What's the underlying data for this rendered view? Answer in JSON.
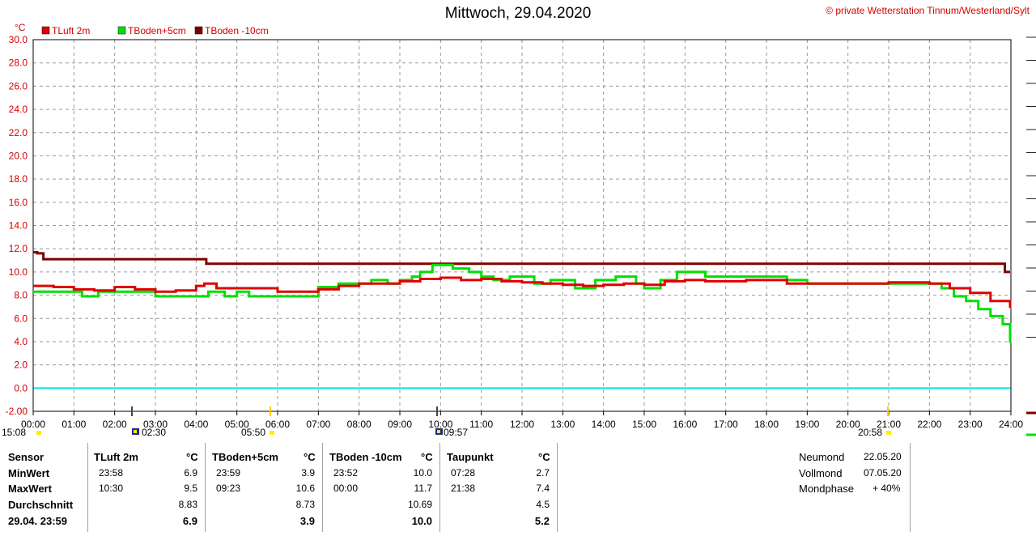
{
  "header": {
    "title": "Mittwoch, 29.04.2020",
    "credit": "© private Wetterstation Tinnum/Westerland/Sylt"
  },
  "chart_data": {
    "type": "line",
    "unit": "°C",
    "ylim": [
      -2,
      30
    ],
    "yticks": [
      "30.0",
      "28.0",
      "26.0",
      "24.0",
      "22.0",
      "20.0",
      "18.0",
      "16.0",
      "14.0",
      "12.0",
      "10.0",
      "8.0",
      "6.0",
      "4.0",
      "2.0",
      "0.0",
      "-2.00"
    ],
    "xlim": [
      0,
      24
    ],
    "xticks": [
      "00:00",
      "01:00",
      "02:00",
      "03:00",
      "04:00",
      "05:00",
      "06:00",
      "07:00",
      "08:00",
      "09:00",
      "10:00",
      "11:00",
      "12:00",
      "13:00",
      "14:00",
      "15:00",
      "16:00",
      "17:00",
      "18:00",
      "19:00",
      "20:00",
      "21:00",
      "22:00",
      "23:00",
      "24:00"
    ],
    "grid": true,
    "legend": [
      "TLuft 2m",
      "TBoden+5cm",
      "TBoden -10cm"
    ],
    "zero_line_color": "#00e5e5",
    "series": [
      {
        "name": "TLuft 2m",
        "color": "#e00000",
        "x": [
          0,
          0.5,
          1,
          1.5,
          2,
          2.5,
          3,
          3.5,
          4,
          4.2,
          4.5,
          5,
          5.5,
          6,
          6.5,
          7,
          7.5,
          8,
          8.5,
          9,
          9.5,
          10,
          10.5,
          11,
          11.5,
          12,
          12.5,
          13,
          13.5,
          14,
          14.5,
          15,
          15.5,
          16,
          16.5,
          17,
          17.5,
          18,
          18.5,
          19,
          19.5,
          20,
          20.5,
          21,
          21.5,
          22,
          22.5,
          23,
          23.5,
          23.98
        ],
        "y": [
          8.8,
          8.7,
          8.5,
          8.4,
          8.7,
          8.5,
          8.3,
          8.4,
          8.8,
          9.0,
          8.6,
          8.6,
          8.6,
          8.3,
          8.3,
          8.5,
          8.8,
          9.0,
          9.0,
          9.2,
          9.4,
          9.5,
          9.3,
          9.4,
          9.2,
          9.1,
          9.0,
          8.9,
          8.8,
          8.9,
          9.0,
          8.9,
          9.2,
          9.3,
          9.2,
          9.2,
          9.3,
          9.3,
          9.0,
          9.0,
          9.0,
          9.0,
          9.0,
          9.1,
          9.1,
          9.0,
          8.6,
          8.2,
          7.5,
          6.9
        ]
      },
      {
        "name": "TBoden+5cm",
        "color": "#00e000",
        "x": [
          0,
          1.2,
          1.6,
          2,
          2.5,
          3,
          3.7,
          4.3,
          4.7,
          5,
          5.3,
          6.7,
          7,
          7.5,
          8,
          8.3,
          8.7,
          9,
          9.3,
          9.5,
          9.8,
          10.3,
          10.7,
          11,
          11.3,
          11.7,
          12.3,
          12.7,
          13.3,
          13.8,
          14.3,
          14.8,
          15,
          15.4,
          15.8,
          16.5,
          17,
          17.5,
          18,
          18.5,
          19,
          20,
          21,
          22,
          22.3,
          22.6,
          22.9,
          23.2,
          23.5,
          23.8,
          23.98
        ],
        "y": [
          8.3,
          7.9,
          8.3,
          8.3,
          8.3,
          7.9,
          7.9,
          8.3,
          7.9,
          8.3,
          7.9,
          7.9,
          8.7,
          9.0,
          9.0,
          9.3,
          9.0,
          9.3,
          9.6,
          10.0,
          10.6,
          10.3,
          10.0,
          9.6,
          9.3,
          9.6,
          9.0,
          9.3,
          8.6,
          9.3,
          9.6,
          9.0,
          8.6,
          9.3,
          10.0,
          9.6,
          9.6,
          9.6,
          9.6,
          9.3,
          9.0,
          9.0,
          9.0,
          9.0,
          8.6,
          7.9,
          7.5,
          6.8,
          6.2,
          5.5,
          3.9
        ]
      },
      {
        "name": "TBoden -10cm",
        "color": "#800000",
        "x": [
          0,
          0.1,
          0.25,
          4.2,
          4.25,
          23.8,
          23.85,
          23.98
        ],
        "y": [
          11.7,
          11.6,
          11.1,
          11.1,
          10.7,
          10.7,
          10.0,
          10.0
        ]
      }
    ],
    "markers": [
      {
        "label": "15:08",
        "kind": "sun"
      },
      {
        "label": "02:30",
        "kind": "moon"
      },
      {
        "label": "05:50",
        "kind": "sun"
      },
      {
        "label": "09:57",
        "kind": "moon"
      },
      {
        "label": "20:58",
        "kind": "sun"
      }
    ]
  },
  "stats": {
    "row_labels": [
      "Sensor",
      "MinWert",
      "MaxWert",
      "Durchschnitt",
      "29.04. 23:59"
    ],
    "sensors": [
      {
        "name": "TLuft 2m",
        "unit": "°C",
        "min_time": "23:58",
        "min": "6.9",
        "max_time": "10:30",
        "max": "9.5",
        "avg": "8.83",
        "current": "6.9"
      },
      {
        "name": "TBoden+5cm",
        "unit": "°C",
        "min_time": "23:59",
        "min": "3.9",
        "max_time": "09:23",
        "max": "10.6",
        "avg": "8.73",
        "current": "3.9"
      },
      {
        "name": "TBoden -10cm",
        "unit": "°C",
        "min_time": "23:52",
        "min": "10.0",
        "max_time": "00:00",
        "max": "11.7",
        "avg": "10.69",
        "current": "10.0"
      },
      {
        "name": "Taupunkt",
        "unit": "°C",
        "min_time": "07:28",
        "min": "2.7",
        "max_time": "21:38",
        "max": "7.4",
        "avg": "4.5",
        "current": "5.2"
      }
    ],
    "moon": [
      {
        "label": "Neumond",
        "value": "22.05.20"
      },
      {
        "label": "Vollmond",
        "value": "07.05.20"
      },
      {
        "label": "Mondphase",
        "value": "+ 40%"
      }
    ]
  }
}
